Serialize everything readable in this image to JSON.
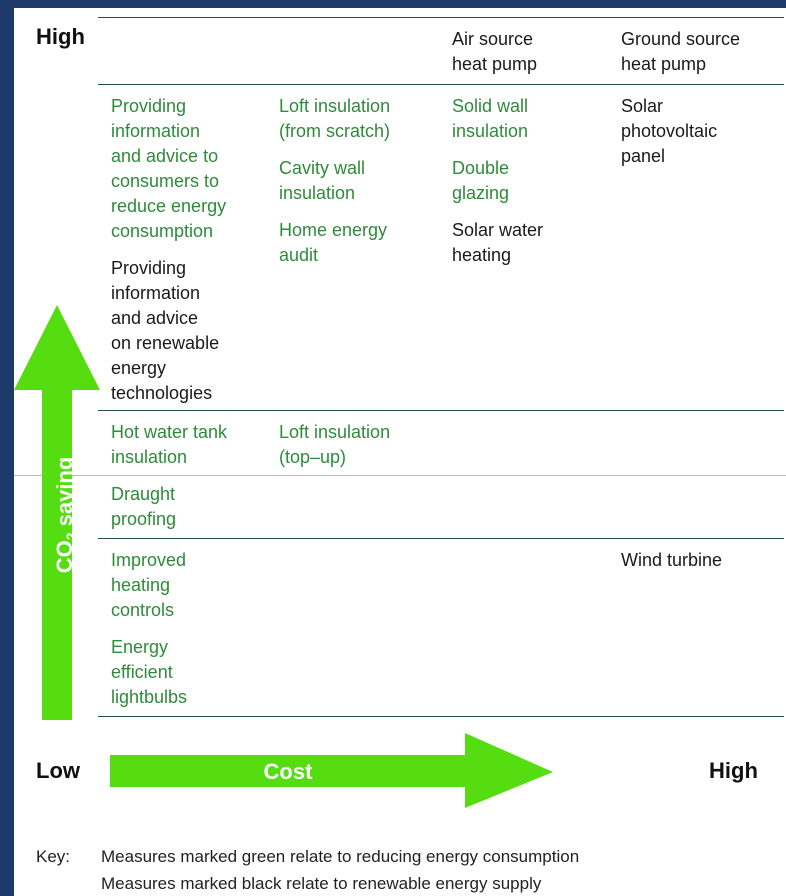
{
  "y_axis": {
    "top_label": "High",
    "label_main": "CO",
    "label_sub": "2",
    "label_rest": " saving"
  },
  "x_axis": {
    "left_label": "Low",
    "label": "Cost",
    "right_label": "High"
  },
  "rows": [
    {
      "cells": [
        [],
        [],
        [
          {
            "lines": [
              "Air source",
              "heat pump"
            ],
            "color": "#1a1a1a"
          }
        ],
        [
          {
            "lines": [
              "Ground source",
              "heat pump"
            ],
            "color": "#1a1a1a"
          }
        ]
      ]
    },
    {
      "cells": [
        [
          {
            "lines": [
              "Providing",
              "information",
              "and advice to",
              "consumers to",
              "reduce energy",
              "consumption"
            ],
            "color": "#2e8b3a"
          },
          {
            "lines": [
              "Providing",
              "information",
              "and advice",
              "on renewable",
              "energy",
              "technologies"
            ],
            "color": "#1a1a1a"
          }
        ],
        [
          {
            "lines": [
              "Loft insulation",
              "(from scratch)"
            ],
            "color": "#2e8b3a"
          },
          {
            "lines": [
              "Cavity wall",
              "insulation"
            ],
            "color": "#2e8b3a"
          },
          {
            "lines": [
              "Home energy",
              "audit"
            ],
            "color": "#2e8b3a"
          }
        ],
        [
          {
            "lines": [
              "Solid wall",
              "insulation"
            ],
            "color": "#2e8b3a"
          },
          {
            "lines": [
              "Double",
              "glazing"
            ],
            "color": "#2e8b3a"
          },
          {
            "lines": [
              "Solar water",
              "heating"
            ],
            "color": "#1a1a1a"
          }
        ],
        [
          {
            "lines": [
              "Solar",
              "photovoltaic",
              "panel"
            ],
            "color": "#1a1a1a"
          }
        ]
      ]
    },
    {
      "cells": [
        [
          {
            "lines": [
              "Hot water tank",
              "insulation"
            ],
            "color": "#2e8b3a"
          },
          {
            "lines": [
              "Draught",
              "proofing"
            ],
            "color": "#2e8b3a"
          }
        ],
        [
          {
            "lines": [
              "Loft insulation",
              "(top–up)"
            ],
            "color": "#2e8b3a"
          }
        ],
        [],
        []
      ]
    },
    {
      "cells": [
        [
          {
            "lines": [
              "Improved",
              "heating",
              "controls"
            ],
            "color": "#2e8b3a"
          },
          {
            "lines": [
              "Energy",
              "efficient",
              "lightbulbs"
            ],
            "color": "#2e8b3a"
          }
        ],
        [],
        [],
        [
          {
            "lines": [
              "Wind turbine"
            ],
            "color": "#1a1a1a"
          }
        ]
      ]
    }
  ],
  "key": {
    "label": "Key:",
    "lines": [
      "Measures marked green relate to reducing energy consumption",
      "Measures marked black relate to renewable energy supply"
    ]
  }
}
